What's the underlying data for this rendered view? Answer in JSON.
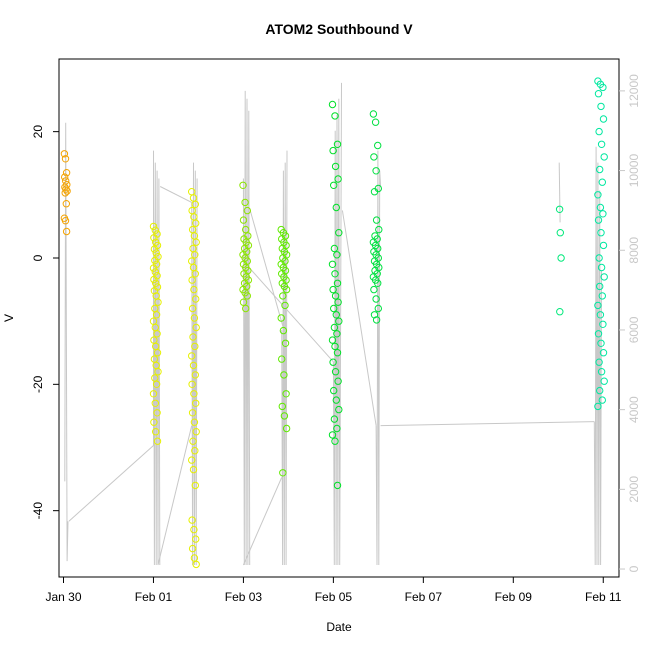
{
  "chart_data": {
    "type": "scatter",
    "title": "ATOM2 Southbound V",
    "xlabel": "Date",
    "ylabel": "V",
    "x_ticks": [
      "Jan 30",
      "Feb 01",
      "Feb 03",
      "Feb 05",
      "Feb 07",
      "Feb 09",
      "Feb 11"
    ],
    "xlim": [
      28.9,
      41.35
    ],
    "ylim": [
      -50.5,
      31.5
    ],
    "y_ticks": [
      -40,
      -20,
      0,
      20
    ],
    "y2_ticks": [
      0,
      2000,
      4000,
      6000,
      8000,
      10000,
      12000
    ],
    "y2lim": [
      -200,
      12800
    ],
    "grid": false,
    "colors": {
      "frame": "#000000",
      "secondary": "#c8c8c8",
      "orange": "#f4a300",
      "yellow": "#e6f000",
      "green": "#00e000",
      "teal": "#00e8a0"
    },
    "clusters": [
      {
        "x": 29.05,
        "x_spread": 0.03,
        "y": [
          16.5,
          15.7,
          13.5,
          12.8,
          12.2,
          11.6,
          11.2,
          10.9,
          10.6,
          10.3,
          8.6,
          6.3,
          5.9,
          4.2
        ],
        "color": "#f4a300"
      },
      {
        "x": 31.05,
        "x_spread": 0.05,
        "y": [
          5.0,
          4.4,
          3.8,
          3.2,
          2.5,
          2.0,
          1.4,
          0.8,
          0.2,
          -0.4,
          -1.0,
          -1.6,
          -2.2,
          -2.8,
          -3.4,
          -4.0,
          -4.6,
          -5.2,
          -6.0,
          -7.0,
          -8.0,
          -9.0,
          -10.0,
          -11.0,
          -12.0,
          -13.0,
          -14.0,
          -15.0,
          -16.0,
          -17.0,
          -18.0,
          -19.0,
          -20.0,
          -21.5,
          -23.0,
          -24.5,
          -26.0,
          -27.5,
          -29.0
        ],
        "color": "#e6f000"
      },
      {
        "x": 31.9,
        "x_spread": 0.05,
        "y": [
          10.5,
          9.5,
          8.5,
          7.5,
          6.5,
          5.5,
          4.5,
          3.5,
          2.5,
          1.5,
          0.5,
          -0.5,
          -1.5,
          -2.5,
          -3.5,
          -5.0,
          -6.5,
          -8.0,
          -9.5,
          -11.0,
          -12.5,
          -14.0,
          -15.5,
          -17.0,
          -18.5,
          -20.0,
          -21.5,
          -23.0,
          -24.5,
          -26.0,
          -27.5,
          -29.0,
          -30.5,
          -32.0,
          -33.5,
          -36.0,
          -41.5,
          -43.0,
          -44.5,
          -46.0,
          -47.5,
          -48.5
        ],
        "color": "#e6f000"
      },
      {
        "x": 33.05,
        "x_spread": 0.06,
        "y": [
          11.5,
          8.8,
          7.5,
          6.0,
          4.5,
          3.5,
          3.0,
          2.5,
          2.0,
          1.5,
          1.0,
          0.5,
          0.0,
          -0.5,
          -1.0,
          -1.5,
          -2.0,
          -2.5,
          -3.0,
          -3.5,
          -4.0,
          -4.5,
          -5.0,
          -5.5,
          -6.0,
          -7.0,
          -8.0
        ],
        "color": "#8ce600"
      },
      {
        "x": 33.9,
        "x_spread": 0.06,
        "y": [
          4.5,
          4.0,
          3.5,
          3.0,
          2.5,
          2.0,
          1.5,
          1.0,
          0.5,
          0.0,
          -0.5,
          -1.0,
          -1.5,
          -2.0,
          -2.5,
          -3.0,
          -3.5,
          -4.0,
          -4.5,
          -5.0,
          -6.0,
          -7.5,
          -9.5,
          -11.5,
          -13.5,
          -16.0,
          -18.5,
          -21.5,
          -23.5,
          -25.0,
          -27.0,
          -34.0
        ],
        "color": "#60ea00"
      },
      {
        "x": 35.05,
        "x_spread": 0.07,
        "y": [
          24.3,
          22.5,
          18.0,
          17.0,
          14.5,
          12.5,
          11.5,
          8.0,
          4.0,
          1.5,
          0.5,
          -1.0,
          -2.5,
          -4.0,
          -5.0,
          -6.0,
          -7.0,
          -8.0,
          -9.0,
          -10.0,
          -11.0,
          -12.0,
          -13.0,
          -14.0,
          -15.0,
          -16.5,
          -18.0,
          -19.5,
          -21.0,
          -22.5,
          -24.0,
          -25.5,
          -27.0,
          -28.0,
          -29.0,
          -36.0
        ],
        "color": "#00e028"
      },
      {
        "x": 35.95,
        "x_spread": 0.06,
        "y": [
          22.8,
          21.5,
          17.8,
          16.0,
          13.8,
          11.0,
          10.5,
          6.0,
          4.5,
          3.5,
          3.0,
          2.5,
          2.0,
          1.5,
          1.0,
          0.5,
          0.0,
          -0.5,
          -1.0,
          -1.5,
          -2.0,
          -2.5,
          -3.0,
          -3.5,
          -4.0,
          -5.0,
          -6.5,
          -8.0,
          -9.0,
          -9.8
        ],
        "color": "#00e040"
      },
      {
        "x": 40.05,
        "x_spread": 0.02,
        "y": [
          7.7,
          4.0,
          0.0,
          -8.5
        ],
        "color": "#00e87a"
      },
      {
        "x": 40.95,
        "x_spread": 0.07,
        "y": [
          28.0,
          27.5,
          27.0,
          26.0,
          24.0,
          22.0,
          20.0,
          18.0,
          16.0,
          14.0,
          12.0,
          10.0,
          8.0,
          7.0,
          6.0,
          4.0,
          2.0,
          0.0,
          -1.5,
          -3.0,
          -4.5,
          -6.0,
          -7.5,
          -9.0,
          -10.5,
          -12.0,
          -13.5,
          -15.0,
          -16.5,
          -18.0,
          -19.5,
          -21.0,
          -22.5,
          -23.5
        ],
        "color": "#00e8a0"
      }
    ],
    "secondary_line": {
      "segments": [
        [
          [
            29.03,
            2200
          ],
          [
            29.05,
            11200
          ],
          [
            29.08,
            200
          ],
          [
            29.1,
            1200
          ]
        ],
        [
          [
            29.12,
            1200
          ],
          [
            31.0,
            3100
          ]
        ],
        [
          [
            31.0,
            3100
          ],
          [
            31.0,
            10500
          ],
          [
            31.02,
            100
          ],
          [
            31.04,
            10200
          ],
          [
            31.06,
            100
          ],
          [
            31.08,
            10000
          ],
          [
            31.1,
            100
          ],
          [
            31.12,
            9800
          ],
          [
            31.14,
            100
          ]
        ],
        [
          [
            31.15,
            9600
          ],
          [
            31.85,
            9200
          ]
        ],
        [
          [
            31.85,
            9200
          ],
          [
            31.87,
            100
          ],
          [
            31.89,
            10200
          ],
          [
            31.91,
            100
          ],
          [
            31.93,
            10000
          ],
          [
            31.95,
            100
          ],
          [
            31.97,
            9800
          ]
        ],
        [
          [
            31.1,
            100
          ],
          [
            31.85,
            3600
          ]
        ],
        [
          [
            33.0,
            9800
          ],
          [
            33.02,
            100
          ],
          [
            33.04,
            12000
          ],
          [
            33.06,
            100
          ],
          [
            33.08,
            11800
          ],
          [
            33.1,
            100
          ],
          [
            33.12,
            11500
          ],
          [
            33.14,
            100
          ]
        ],
        [
          [
            33.15,
            9000
          ],
          [
            33.9,
            6000
          ]
        ],
        [
          [
            33.0,
            100
          ],
          [
            33.85,
            2300
          ]
        ],
        [
          [
            33.85,
            6000
          ],
          [
            33.87,
            100
          ],
          [
            33.89,
            10000
          ],
          [
            33.91,
            100
          ],
          [
            33.93,
            10200
          ],
          [
            33.95,
            100
          ],
          [
            33.97,
            10500
          ]
        ],
        [
          [
            33.1,
            7600
          ],
          [
            35.0,
            5200
          ]
        ],
        [
          [
            35.0,
            5200
          ],
          [
            35.02,
            100
          ],
          [
            35.04,
            11000
          ],
          [
            35.06,
            100
          ],
          [
            35.08,
            11400
          ],
          [
            35.1,
            100
          ],
          [
            35.12,
            11800
          ],
          [
            35.14,
            100
          ],
          [
            35.18,
            12200
          ]
        ],
        [
          [
            35.2,
            9000
          ],
          [
            35.95,
            3600
          ]
        ],
        [
          [
            35.95,
            3600
          ],
          [
            35.97,
            100
          ],
          [
            35.99,
            10500
          ],
          [
            36.01,
            100
          ],
          [
            36.03,
            10000
          ],
          [
            36.05,
            9600
          ]
        ],
        [
          [
            36.05,
            3600
          ],
          [
            40.8,
            3700
          ]
        ],
        [
          [
            40.02,
            10200
          ],
          [
            40.04,
            8700
          ]
        ],
        [
          [
            40.8,
            3700
          ],
          [
            40.82,
            100
          ],
          [
            40.84,
            10600
          ],
          [
            40.86,
            100
          ],
          [
            40.88,
            10200
          ],
          [
            40.9,
            100
          ],
          [
            40.92,
            9500
          ],
          [
            40.94,
            100
          ],
          [
            40.96,
            7500
          ]
        ]
      ]
    }
  }
}
